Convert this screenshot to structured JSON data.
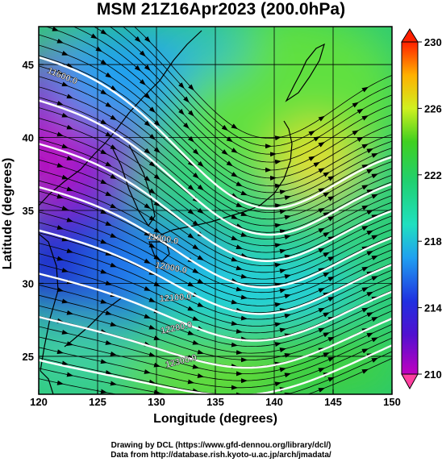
{
  "title": "MSM 21Z16Apr2023 (200.0hPa)",
  "xlabel": "Longitude (degrees)",
  "ylabel": "Latitude  (degrees)",
  "credits": [
    "Drawing by DCL (https://www.gfd-dennou.org/library/dcl/)",
    "Data from http://database.rish.kyoto-u.ac.jp/arch/jmadata/"
  ],
  "chart_data": {
    "type": "map",
    "x_ticks": [
      "120",
      "125",
      "130",
      "135",
      "140",
      "145",
      "150"
    ],
    "y_ticks": [
      "25",
      "30",
      "35",
      "40",
      "45"
    ],
    "xlim": [
      120,
      150
    ],
    "ylim": [
      22.4,
      47.6
    ],
    "colorbar": {
      "ticks": [
        "210",
        "214",
        "218",
        "222",
        "226",
        "230"
      ],
      "range": [
        210,
        230
      ],
      "colors": [
        "#c000c0",
        "#2020d0",
        "#20a0f0",
        "#20e0a0",
        "#30d030",
        "#e0f020",
        "#ffa000",
        "#ff2000"
      ]
    },
    "contour_labels": [
      "11600.0",
      "11900.0",
      "12000.0",
      "12100.0",
      "12200.0",
      "12300.0"
    ],
    "contour_values": [
      11600,
      11700,
      11800,
      11900,
      12000,
      12100,
      12200,
      12300
    ]
  }
}
